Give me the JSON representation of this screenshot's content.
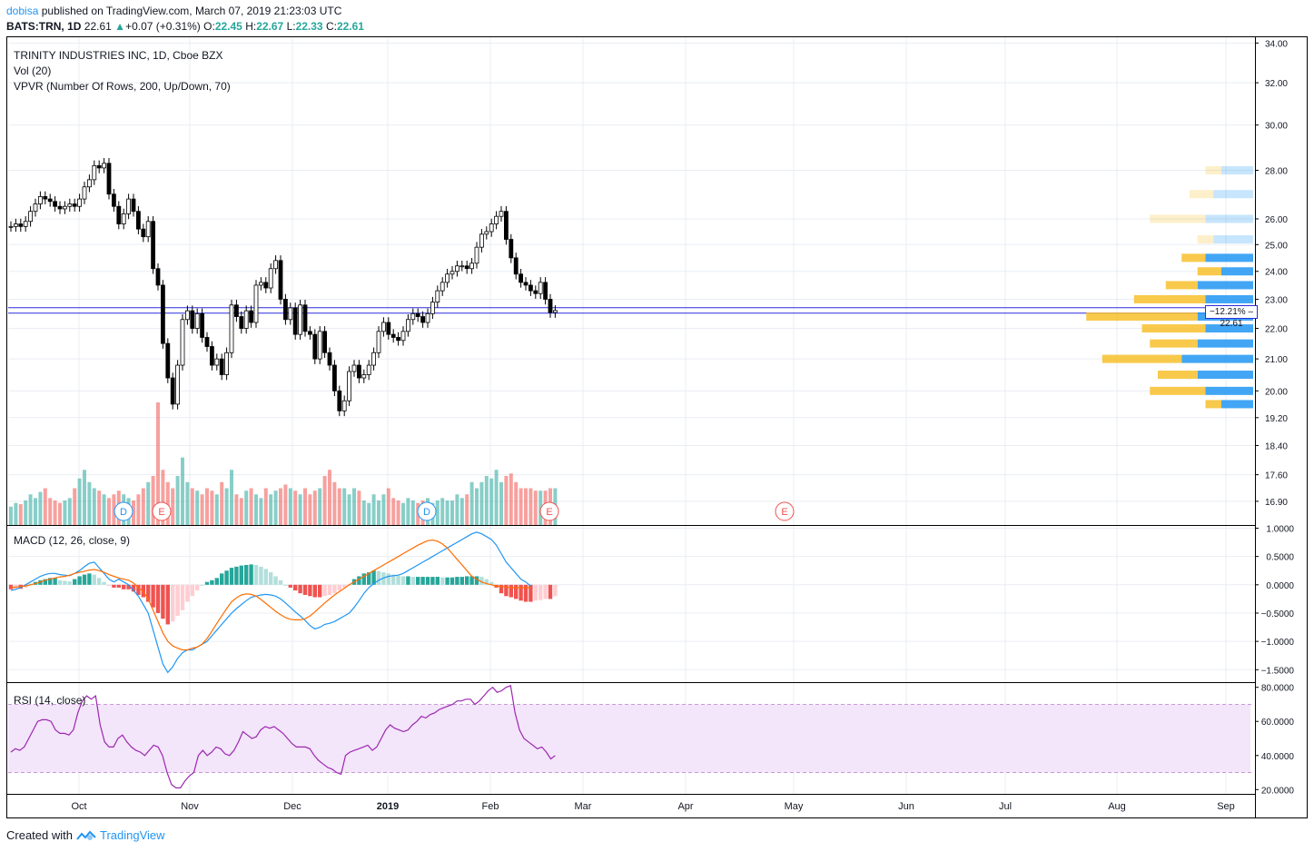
{
  "header": {
    "user": "dobisa",
    "published_text": "published on TradingView.com, March 07, 2019 21:23:03 UTC",
    "symbol": "BATS:TRN, 1D",
    "last": "22.61",
    "change": "+0.07 (+0.31%)",
    "o_label": "O:",
    "o": "22.45",
    "h_label": "H:",
    "h": "22.67",
    "l_label": "L:",
    "l": "22.33",
    "c_label": "C:",
    "c": "22.61"
  },
  "legends": {
    "main": "TRINITY INDUSTRIES INC, 1D, Cboe BZX",
    "vol": "Vol (20)",
    "vpvr": "VPVR (Number Of Rows, 200, Up/Down, 70)",
    "macd": "MACD (12, 26, close, 9)",
    "rsi": "RSI (14, close)"
  },
  "price_tag": {
    "pct": "−12.21%",
    "price": "22.61"
  },
  "footer": {
    "created_with": "Created with",
    "brand": "TradingView"
  },
  "colors": {
    "up_body": "#ffffff",
    "down_body": "#000000",
    "vol_up": "#26a69a",
    "vol_down": "#ef5350",
    "macd": "#2196f3",
    "signal": "#ff6d00",
    "rsi": "#9c27b0",
    "vpvr_up": "#2196f3",
    "vpvr_down": "#f7c02b"
  },
  "chart_data": [
    {
      "type": "candlestick",
      "title": "TRINITY INDUSTRIES INC, 1D, Cboe BZX",
      "scale": "log",
      "ylim": [
        16.3,
        34.3
      ],
      "y_ticks": [
        34.0,
        32.0,
        30.0,
        28.0,
        26.0,
        25.0,
        24.0,
        23.0,
        22.0,
        21.0,
        20.0,
        19.2,
        18.4,
        17.6,
        16.9
      ],
      "x_ticks": [
        "Oct",
        "Nov",
        "Dec",
        "2019",
        "Feb",
        "Mar",
        "Apr",
        "May",
        "Jun",
        "Jul",
        "Aug",
        "Sep"
      ],
      "closes": [
        25.7,
        25.8,
        25.7,
        25.9,
        26.3,
        26.6,
        26.9,
        26.8,
        26.7,
        26.5,
        26.4,
        26.5,
        26.6,
        26.5,
        26.8,
        27.3,
        27.6,
        28.2,
        28.1,
        28.3,
        27.0,
        26.5,
        25.8,
        26.2,
        26.8,
        26.3,
        25.6,
        25.3,
        25.9,
        24.1,
        23.5,
        21.5,
        20.4,
        19.6,
        20.8,
        22.3,
        22.6,
        22.0,
        22.5,
        21.7,
        21.4,
        20.8,
        21.0,
        20.5,
        21.2,
        22.8,
        22.4,
        22.0,
        22.6,
        22.2,
        23.5,
        23.6,
        23.4,
        24.1,
        24.4,
        23.0,
        22.3,
        22.7,
        21.8,
        22.8,
        21.9,
        21.8,
        21.0,
        21.9,
        21.2,
        20.8,
        20.0,
        19.4,
        19.7,
        20.6,
        20.8,
        20.4,
        20.5,
        20.8,
        21.2,
        21.9,
        22.2,
        21.8,
        21.7,
        21.6,
        21.9,
        22.3,
        22.5,
        22.4,
        22.2,
        22.5,
        22.9,
        23.3,
        23.6,
        23.9,
        24.0,
        24.2,
        24.2,
        24.1,
        24.3,
        24.9,
        25.4,
        25.5,
        25.8,
        26.1,
        26.3,
        25.2,
        24.5,
        23.9,
        23.6,
        23.5,
        23.3,
        23.2,
        23.6,
        23.0,
        22.54,
        22.61
      ],
      "last_close": 22.61,
      "change_pct_marker": "−12.21%",
      "earnings_markers": [
        "E",
        "E",
        "E"
      ],
      "dividend_markers": [
        "D",
        "D"
      ]
    },
    {
      "type": "bar",
      "title": "Vol (20)",
      "note": "relative volume per session (max = 1.0)",
      "values": [
        0.15,
        0.18,
        0.17,
        0.2,
        0.25,
        0.22,
        0.27,
        0.3,
        0.22,
        0.2,
        0.18,
        0.2,
        0.22,
        0.3,
        0.38,
        0.45,
        0.35,
        0.3,
        0.28,
        0.25,
        0.22,
        0.25,
        0.28,
        0.25,
        0.22,
        0.2,
        0.25,
        0.3,
        0.35,
        0.4,
        1.0,
        0.45,
        0.35,
        0.3,
        0.4,
        0.55,
        0.35,
        0.3,
        0.28,
        0.25,
        0.3,
        0.28,
        0.25,
        0.35,
        0.3,
        0.45,
        0.25,
        0.22,
        0.28,
        0.3,
        0.25,
        0.22,
        0.3,
        0.25,
        0.28,
        0.3,
        0.33,
        0.3,
        0.28,
        0.25,
        0.3,
        0.25,
        0.28,
        0.3,
        0.4,
        0.45,
        0.35,
        0.3,
        0.3,
        0.25,
        0.3,
        0.28,
        0.2,
        0.18,
        0.25,
        0.2,
        0.25,
        0.3,
        0.22,
        0.2,
        0.18,
        0.22,
        0.2,
        0.18,
        0.2,
        0.22,
        0.18,
        0.2,
        0.22,
        0.2,
        0.2,
        0.25,
        0.22,
        0.25,
        0.35,
        0.3,
        0.35,
        0.4,
        0.38,
        0.45,
        0.35,
        0.4,
        0.42,
        0.35,
        0.3,
        0.3,
        0.3,
        0.28,
        0.28,
        0.28,
        0.3,
        0.3
      ]
    },
    {
      "type": "line",
      "title": "MACD (12, 26, close, 9)",
      "ylim": [
        -1.72,
        1.04
      ],
      "y_ticks": [
        1.0,
        0.5,
        0.0,
        -0.5,
        -1.0,
        -1.5
      ],
      "y_tick_labels": [
        "1.0000",
        "0.5000",
        "0.0000",
        "−0.5000",
        "−1.0000",
        "−1.5000"
      ],
      "series": [
        {
          "name": "MACD",
          "values": [
            -0.1,
            -0.08,
            -0.05,
            0.0,
            0.05,
            0.1,
            0.15,
            0.18,
            0.2,
            0.2,
            0.18,
            0.17,
            0.16,
            0.2,
            0.25,
            0.32,
            0.38,
            0.4,
            0.3,
            0.2,
            0.1,
            0.05,
            0.1,
            0.05,
            0.0,
            -0.1,
            -0.2,
            -0.35,
            -0.5,
            -0.8,
            -1.1,
            -1.4,
            -1.55,
            -1.45,
            -1.3,
            -1.2,
            -1.15,
            -1.15,
            -1.1,
            -1.05,
            -1.0,
            -0.9,
            -0.8,
            -0.7,
            -0.6,
            -0.5,
            -0.42,
            -0.35,
            -0.28,
            -0.22,
            -0.2,
            -0.18,
            -0.17,
            -0.18,
            -0.2,
            -0.25,
            -0.32,
            -0.4,
            -0.48,
            -0.55,
            -0.63,
            -0.72,
            -0.78,
            -0.75,
            -0.7,
            -0.68,
            -0.65,
            -0.6,
            -0.55,
            -0.5,
            -0.4,
            -0.28,
            -0.15,
            -0.05,
            0.02,
            0.08,
            0.12,
            0.15,
            0.16,
            0.17,
            0.2,
            0.25,
            0.3,
            0.35,
            0.4,
            0.45,
            0.5,
            0.55,
            0.6,
            0.65,
            0.7,
            0.75,
            0.8,
            0.85,
            0.9,
            0.93,
            0.9,
            0.85,
            0.8,
            0.7,
            0.55,
            0.4,
            0.3,
            0.2,
            0.1,
            0.05,
            -0.02
          ]
        },
        {
          "name": "Signal",
          "values": [
            -0.05,
            -0.04,
            -0.03,
            -0.02,
            0.0,
            0.02,
            0.05,
            0.08,
            0.1,
            0.12,
            0.14,
            0.15,
            0.17,
            0.2,
            0.22,
            0.24,
            0.26,
            0.27,
            0.25,
            0.22,
            0.18,
            0.15,
            0.12,
            0.1,
            0.08,
            0.03,
            -0.05,
            -0.12,
            -0.25,
            -0.45,
            -0.65,
            -0.85,
            -1.0,
            -1.08,
            -1.12,
            -1.15,
            -1.15,
            -1.12,
            -1.1,
            -1.05,
            -0.95,
            -0.82,
            -0.68,
            -0.55,
            -0.42,
            -0.3,
            -0.23,
            -0.18,
            -0.16,
            -0.17,
            -0.2,
            -0.26,
            -0.33,
            -0.4,
            -0.47,
            -0.53,
            -0.58,
            -0.61,
            -0.62,
            -0.62,
            -0.6,
            -0.55,
            -0.48,
            -0.4,
            -0.32,
            -0.25,
            -0.18,
            -0.12,
            -0.06,
            0.0,
            0.05,
            0.1,
            0.15,
            0.2,
            0.25,
            0.3,
            0.35,
            0.4,
            0.45,
            0.5,
            0.55,
            0.6,
            0.65,
            0.7,
            0.74,
            0.78,
            0.79,
            0.77,
            0.72,
            0.65,
            0.55,
            0.45,
            0.35,
            0.25,
            0.15,
            0.1,
            0.05,
            0.02,
            0.0,
            -0.02,
            -0.03,
            -0.04,
            -0.05,
            -0.05,
            -0.05,
            -0.05,
            -0.05
          ]
        },
        {
          "name": "Histogram",
          "values": [
            -0.08,
            -0.07,
            -0.07,
            -0.05,
            0.02,
            0.05,
            0.08,
            0.1,
            0.12,
            0.12,
            0.08,
            0.07,
            0.06,
            0.1,
            0.15,
            0.18,
            0.2,
            0.18,
            0.12,
            0.05,
            -0.02,
            -0.05,
            -0.05,
            -0.08,
            -0.08,
            -0.12,
            -0.18,
            -0.22,
            -0.3,
            -0.4,
            -0.5,
            -0.6,
            -0.7,
            -0.65,
            -0.55,
            -0.45,
            -0.3,
            -0.2,
            -0.1,
            0.0,
            0.05,
            0.08,
            0.12,
            0.2,
            0.25,
            0.3,
            0.32,
            0.34,
            0.35,
            0.36,
            0.35,
            0.32,
            0.28,
            0.22,
            0.15,
            0.08,
            0.0,
            -0.05,
            -0.1,
            -0.15,
            -0.18,
            -0.2,
            -0.22,
            -0.22,
            -0.2,
            -0.18,
            -0.15,
            -0.1,
            -0.05,
            0.0,
            0.1,
            0.15,
            0.2,
            0.22,
            0.25,
            0.24,
            0.22,
            0.2,
            0.18,
            0.16,
            0.15,
            0.15,
            0.14,
            0.14,
            0.14,
            0.14,
            0.14,
            0.14,
            0.13,
            0.13,
            0.13,
            0.14,
            0.14,
            0.15,
            0.15,
            0.15,
            0.14,
            0.1,
            0.05,
            -0.05,
            -0.15,
            -0.2,
            -0.22,
            -0.25,
            -0.28,
            -0.3,
            -0.3,
            -0.28,
            -0.27,
            -0.25,
            -0.25,
            -0.2
          ]
        }
      ]
    },
    {
      "type": "line",
      "title": "RSI (14, close)",
      "ylim": [
        17.5,
        82.5
      ],
      "y_ticks": [
        80.0,
        60.0,
        40.0,
        20.0
      ],
      "y_tick_labels": [
        "80.0000",
        "60.0000",
        "40.0000",
        "20.0000"
      ],
      "bands": [
        30,
        70
      ],
      "series": [
        {
          "name": "RSI",
          "values": [
            42,
            44,
            43,
            45,
            50,
            55,
            60,
            61,
            61,
            60,
            55,
            53,
            53,
            52,
            55,
            65,
            72,
            75,
            73,
            75,
            58,
            48,
            45,
            45,
            50,
            52,
            48,
            45,
            43,
            42,
            40,
            43,
            46,
            45,
            40,
            30,
            23,
            21,
            21,
            25,
            28,
            30,
            40,
            43,
            40,
            42,
            45,
            44,
            41,
            40,
            43,
            48,
            54,
            52,
            50,
            51,
            55,
            57,
            56,
            57,
            55,
            53,
            50,
            47,
            45,
            45,
            45,
            44,
            40,
            37,
            35,
            33,
            32,
            30,
            29,
            40,
            42,
            43,
            44,
            45,
            46,
            43,
            45,
            50,
            55,
            58,
            56,
            55,
            54,
            55,
            58,
            60,
            63,
            62,
            64,
            65,
            67,
            68,
            69,
            70,
            72,
            72,
            73,
            73,
            70,
            72,
            75,
            78,
            80,
            77,
            78,
            80,
            81,
            65,
            55,
            50,
            48,
            46,
            44,
            45,
            42,
            38,
            40
          ]
        }
      ]
    },
    {
      "type": "bar",
      "title": "VPVR (Number Of Rows, 200, Up/Down, 70)",
      "orientation": "horizontal",
      "note": "relative volume per price row (max = 1.0)",
      "rows": [
        {
          "price": 28.0,
          "up": 0.2,
          "down": 0.1
        },
        {
          "price": 27.0,
          "up": 0.25,
          "down": 0.15
        },
        {
          "price": 26.0,
          "up": 0.3,
          "down": 0.35
        },
        {
          "price": 25.2,
          "up": 0.25,
          "down": 0.1
        },
        {
          "price": 24.5,
          "up": 0.3,
          "down": 0.15
        },
        {
          "price": 24.0,
          "up": 0.2,
          "down": 0.15
        },
        {
          "price": 23.5,
          "up": 0.35,
          "down": 0.2
        },
        {
          "price": 23.0,
          "up": 0.3,
          "down": 0.45
        },
        {
          "price": 22.4,
          "up": 0.35,
          "down": 0.7
        },
        {
          "price": 22.0,
          "up": 0.3,
          "down": 0.4
        },
        {
          "price": 21.5,
          "up": 0.35,
          "down": 0.3
        },
        {
          "price": 21.0,
          "up": 0.45,
          "down": 0.5
        },
        {
          "price": 20.5,
          "up": 0.35,
          "down": 0.25
        },
        {
          "price": 20.0,
          "up": 0.3,
          "down": 0.35
        },
        {
          "price": 19.6,
          "up": 0.2,
          "down": 0.1
        }
      ]
    }
  ]
}
